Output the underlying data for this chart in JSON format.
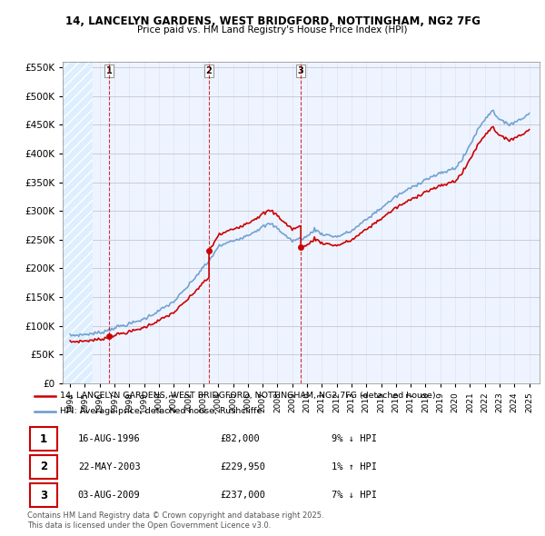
{
  "title1": "14, LANCELYN GARDENS, WEST BRIDGFORD, NOTTINGHAM, NG2 7FG",
  "title2": "Price paid vs. HM Land Registry's House Price Index (HPI)",
  "legend_line1": "14, LANCELYN GARDENS, WEST BRIDGFORD, NOTTINGHAM, NG2 7FG (detached house)",
  "legend_line2": "HPI: Average price, detached house, Rushcliffe",
  "transactions": [
    {
      "num": 1,
      "date": "16-AUG-1996",
      "price": 82000,
      "pct": "9%",
      "dir": "↓",
      "x_year": 1996.62
    },
    {
      "num": 2,
      "date": "22-MAY-2003",
      "price": 229950,
      "pct": "1%",
      "dir": "↑",
      "x_year": 2003.38
    },
    {
      "num": 3,
      "date": "03-AUG-2009",
      "price": 237000,
      "pct": "7%",
      "dir": "↓",
      "x_year": 2009.58
    }
  ],
  "hpi_color": "#6699CC",
  "price_color": "#CC0000",
  "ylim": [
    0,
    560000
  ],
  "xlim_start": 1993.5,
  "xlim_end": 2025.7,
  "footer": "Contains HM Land Registry data © Crown copyright and database right 2025.\nThis data is licensed under the Open Government Licence v3.0.",
  "chart_bg": "#EEF4FF",
  "hatch_area_end": 1995.5
}
